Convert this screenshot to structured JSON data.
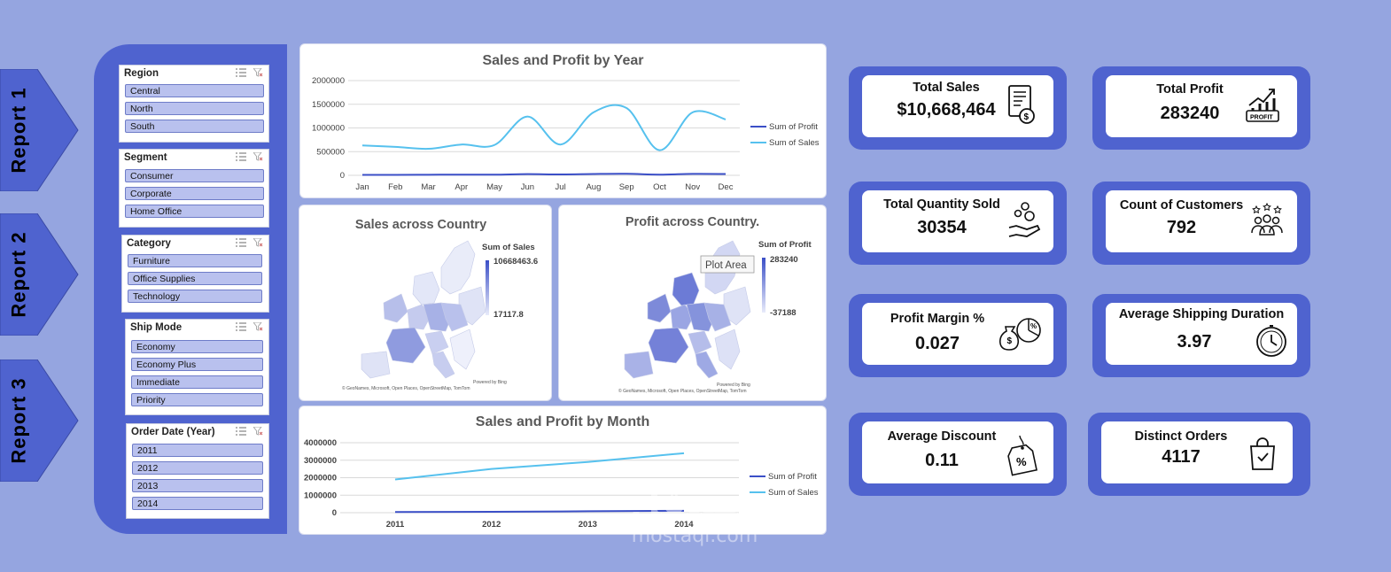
{
  "reports": [
    {
      "label": "Report  1"
    },
    {
      "label": "Report  2"
    },
    {
      "label": "Report  3"
    }
  ],
  "slicers": {
    "region": {
      "title": "Region",
      "items": [
        "Central",
        "North",
        "South"
      ]
    },
    "segment": {
      "title": "Segment",
      "items": [
        "Consumer",
        "Corporate",
        "Home Office"
      ]
    },
    "category": {
      "title": "Category",
      "items": [
        "Furniture",
        "Office Supplies",
        "Technology"
      ]
    },
    "ship_mode": {
      "title": "Ship Mode",
      "items": [
        "Economy",
        "Economy Plus",
        "Immediate",
        "Priority"
      ]
    },
    "order_year": {
      "title": "Order Date (Year)",
      "items": [
        "2011",
        "2012",
        "2013",
        "2014"
      ]
    }
  },
  "charts": {
    "year": {
      "title": "Sales and Profit by Year"
    },
    "sales_map": {
      "title": "Sales across Country",
      "legend_title": "Sum of Sales",
      "max_label": "10668463.6",
      "min_label": "17117.8",
      "credit": "Powered by Bing",
      "attribution": "© GeoNames, Microsoft, Open Places, OpenStreetMap, TomTom"
    },
    "profit_map": {
      "title": "Profit across Country.",
      "legend_title": "Sum of Profit",
      "max_label": "283240",
      "min_label": "-37188",
      "tooltip": "Plot Area",
      "credit": "Powered by Bing",
      "attribution": "© GeoNames, Microsoft, Open Places, OpenStreetMap, TomTom"
    },
    "month": {
      "title": "Sales and Profit by Month"
    }
  },
  "chart_data": [
    {
      "type": "line",
      "title": "Sales and Profit by Year",
      "categories": [
        "Jan",
        "Feb",
        "Mar",
        "Apr",
        "May",
        "Jun",
        "Jul",
        "Aug",
        "Sep",
        "Oct",
        "Nov",
        "Dec"
      ],
      "y_ticks": [
        "2000000",
        "1500000",
        "1000000",
        "500000",
        "0"
      ],
      "ylim": [
        0,
        2000000
      ],
      "series": [
        {
          "name": "Sum of Profit",
          "color": "#3b4fc7",
          "values": [
            10000,
            9000,
            12000,
            15000,
            14000,
            25000,
            18000,
            28000,
            32000,
            15000,
            30000,
            28000
          ]
        },
        {
          "name": "Sum of Sales",
          "color": "#56c1ee",
          "values": [
            630000,
            600000,
            560000,
            650000,
            640000,
            1240000,
            650000,
            1330000,
            1420000,
            530000,
            1330000,
            1180000
          ]
        }
      ],
      "legend": "right",
      "grid": true
    },
    {
      "type": "line",
      "title": "Sales and Profit by Month",
      "categories": [
        "2011",
        "2012",
        "2013",
        "2014"
      ],
      "y_ticks": [
        "4000000",
        "3000000",
        "2000000",
        "1000000",
        "0"
      ],
      "ylim": [
        0,
        4000000
      ],
      "series": [
        {
          "name": "Sum of Profit",
          "color": "#3b4fc7",
          "values": [
            40000,
            50000,
            80000,
            110000
          ]
        },
        {
          "name": "Sum of Sales",
          "color": "#56c1ee",
          "values": [
            1900000,
            2500000,
            2900000,
            3400000
          ]
        }
      ],
      "legend": "right",
      "grid": true
    }
  ],
  "kpis": {
    "total_sales": {
      "title": "Total Sales",
      "value": "$10,668,464",
      "icon": "invoice-icon"
    },
    "total_profit": {
      "title": "Total Profit",
      "value": "283240",
      "icon": "profit-chart-icon"
    },
    "total_quantity": {
      "title": "Total Quantity Sold",
      "value": "30354",
      "icon": "hand-coins-icon"
    },
    "customers": {
      "title": "Count of Customers",
      "value": "792",
      "icon": "people-stars-icon"
    },
    "profit_margin": {
      "title": "Profit Margin %",
      "value": "0.027",
      "icon": "money-bag-pie-icon"
    },
    "shipping": {
      "title": "Average Shipping Duration",
      "value": "3.97",
      "icon": "stopwatch-icon"
    },
    "discount": {
      "title": "Average Discount",
      "value": "0.11",
      "icon": "discount-tag-icon"
    },
    "orders": {
      "title": "Distinct Orders",
      "value": "4117",
      "icon": "shopping-bag-icon"
    }
  },
  "watermark": {
    "arabic": "مستقل",
    "latin": "mostaql.com"
  }
}
